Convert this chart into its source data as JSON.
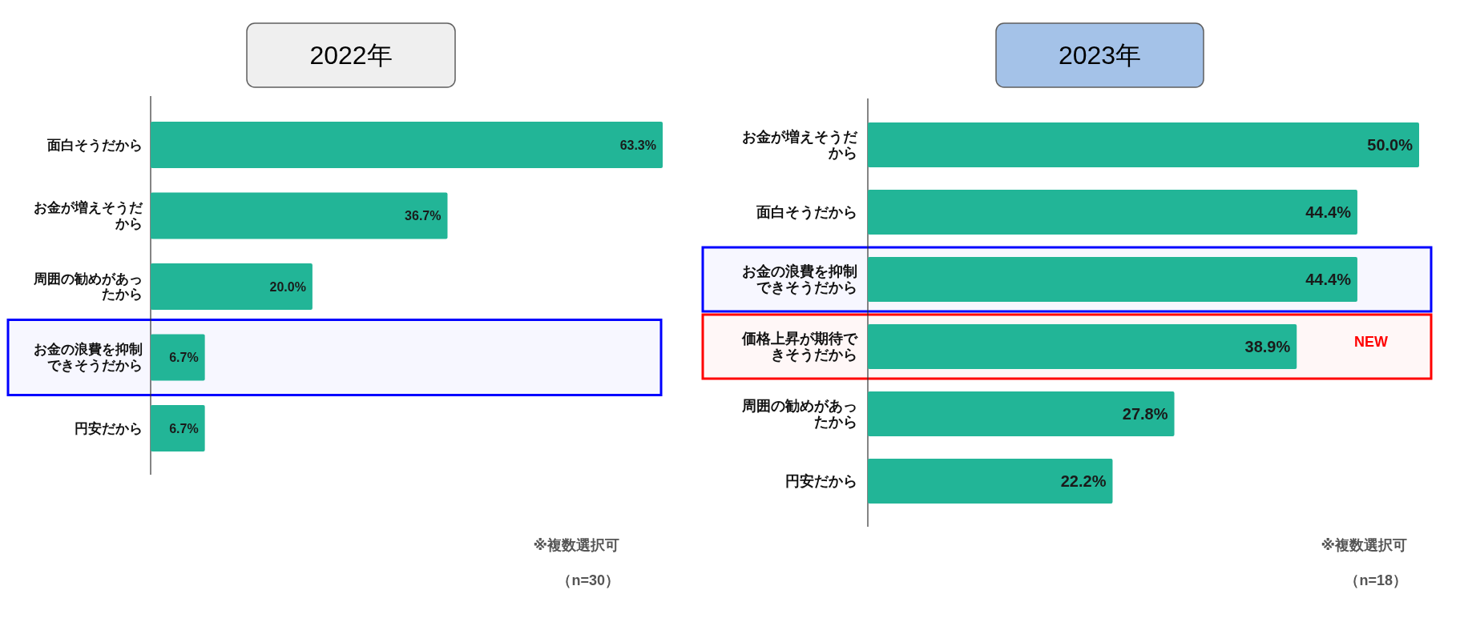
{
  "chart_data": [
    {
      "type": "bar",
      "orientation": "horizontal",
      "title": "2022年",
      "categories": [
        "面白そうだから",
        "お金が増えそうだから",
        "周囲の勧めがあったから",
        "お金の浪費を抑制できそうだから",
        "円安だから"
      ],
      "values": [
        63.3,
        36.7,
        20.0,
        6.7,
        6.7
      ],
      "value_labels": [
        "63.3%",
        "36.7%",
        "20.0%",
        "6.7%",
        "6.7%"
      ],
      "color": "#22b597",
      "tick_labels": "y",
      "bands": [
        {
          "axis": "y",
          "from": "お金の浪費を抑制できそうだから",
          "to": "お金の浪費を抑制できそうだから",
          "color": "#0000ff"
        }
      ],
      "annotations": [
        "※複数選択可",
        "（n=30）"
      ]
    },
    {
      "type": "bar",
      "orientation": "horizontal",
      "title": "2023年",
      "categories": [
        "お金が増えそうだから",
        "面白そうだから",
        "お金の浪費を抑制できそうだから",
        "価格上昇が期待できそうだから",
        "周囲の勧めがあったから",
        "円安だから"
      ],
      "values": [
        50.0,
        44.4,
        44.4,
        38.9,
        27.8,
        22.2
      ],
      "value_labels": [
        "50.0%",
        "44.4%",
        "44.4%",
        "38.9%",
        "27.8%",
        "22.2%"
      ],
      "color": "#22b597",
      "tick_labels": "y",
      "bands": [
        {
          "axis": "y",
          "from": "お金の浪費を抑制できそうだから",
          "to": "お金の浪費を抑制できそうだから",
          "color": "#0000ff"
        },
        {
          "axis": "y",
          "from": "価格上昇が期待できそうだから",
          "to": "価格上昇が期待できそうだから",
          "color": "#ff0000",
          "label": "NEW"
        }
      ],
      "annotations": [
        "※複数選択可",
        "（n=18）"
      ]
    }
  ]
}
